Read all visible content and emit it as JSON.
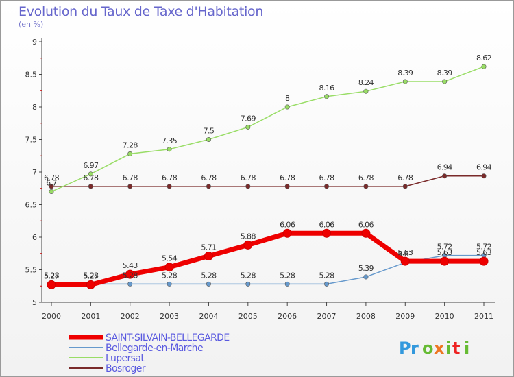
{
  "header": {
    "title": "Evolution du Taux de Taxe d'Habitation",
    "unit": "(en %)"
  },
  "logo": {
    "text": "Proxiti"
  },
  "chart_data": {
    "type": "line",
    "title": "Evolution du Taux de Taxe d'Habitation",
    "ylabel": "(en %)",
    "xlabel": "",
    "x": [
      "2000",
      "2001",
      "2002",
      "2003",
      "2004",
      "2005",
      "2006",
      "2007",
      "2008",
      "2009",
      "2010",
      "2011"
    ],
    "ylim": [
      5,
      9
    ],
    "yticks": [
      "5",
      "5.5",
      "6",
      "6.5",
      "7",
      "7.5",
      "8",
      "8.5",
      "9"
    ],
    "grid": false,
    "legend_position": "bottom-left",
    "series": [
      {
        "name": "SAINT-SILVAIN-BELLEGARDE",
        "color": "#ee0000",
        "values": [
          5.27,
          5.27,
          5.43,
          5.54,
          5.71,
          5.88,
          6.06,
          6.06,
          6.06,
          5.63,
          5.63,
          5.63
        ],
        "labels": [
          "5.27",
          "5.27",
          "5.43",
          "5.54",
          "5.71",
          "5.88",
          "6.06",
          "6.06",
          "6.06",
          "5.63",
          "5.63",
          "5.63"
        ]
      },
      {
        "name": "Bellegarde-en-Marche",
        "color": "#6699cc",
        "values": [
          5.28,
          5.28,
          5.28,
          5.28,
          5.28,
          5.28,
          5.28,
          5.28,
          5.39,
          5.61,
          5.72,
          5.72
        ],
        "labels": [
          "5.28",
          "5.28",
          "5.28",
          "5.28",
          "5.28",
          "5.28",
          "5.28",
          "5.28",
          "5.39",
          "5.61",
          "5.72",
          "5.72"
        ]
      },
      {
        "name": "Lupersat",
        "color": "#99dd66",
        "values": [
          6.7,
          6.97,
          7.28,
          7.35,
          7.5,
          7.69,
          8,
          8.16,
          8.24,
          8.39,
          8.39,
          8.62
        ],
        "labels": [
          "6.7",
          "6.97",
          "7.28",
          "7.35",
          "7.5",
          "7.69",
          "8",
          "8.16",
          "8.24",
          "8.39",
          "8.39",
          "8.62"
        ]
      },
      {
        "name": "Bosroger",
        "color": "#7a2a2a",
        "values": [
          6.78,
          6.78,
          6.78,
          6.78,
          6.78,
          6.78,
          6.78,
          6.78,
          6.78,
          6.78,
          6.94,
          6.94
        ],
        "labels": [
          "6.78",
          "6.78",
          "6.78",
          "6.78",
          "6.78",
          "6.78",
          "6.78",
          "6.78",
          "6.78",
          "6.78",
          "6.94",
          "6.94"
        ]
      }
    ]
  }
}
